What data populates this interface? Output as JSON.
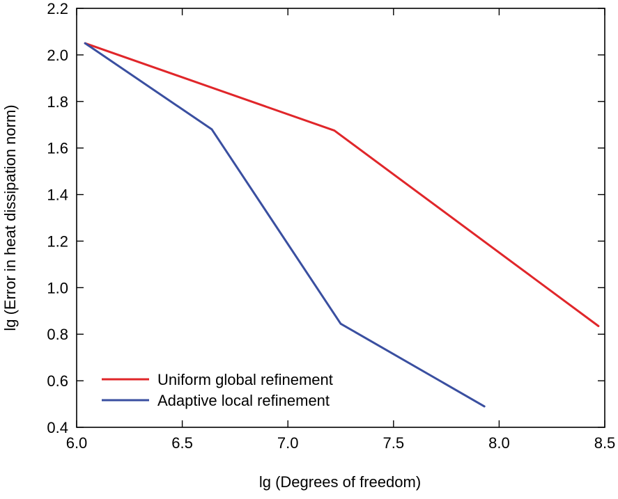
{
  "chart_data": {
    "type": "line",
    "title": "",
    "xlabel": "lg (Degrees of freedom)",
    "ylabel": "lg (Error in heat dissipation norm)",
    "xlim": [
      6.0,
      8.5
    ],
    "ylim": [
      0.4,
      2.2
    ],
    "xticks": [
      6.0,
      6.5,
      7.0,
      7.5,
      8.0,
      8.5
    ],
    "yticks": [
      0.4,
      0.6,
      0.8,
      1.0,
      1.2,
      1.4,
      1.6,
      1.8,
      2.0,
      2.2
    ],
    "xtick_labels": [
      "6.0",
      "6.5",
      "7.0",
      "7.5",
      "8.0",
      "8.5"
    ],
    "ytick_labels": [
      "0.4",
      "0.6",
      "0.8",
      "1.0",
      "1.2",
      "1.4",
      "1.6",
      "1.8",
      "2.0",
      "2.2"
    ],
    "grid": false,
    "legend_position": "bottom-left",
    "series": [
      {
        "name": "Uniform global refinement",
        "color": "#e0262a",
        "x": [
          6.04,
          7.22,
          8.47
        ],
        "y": [
          2.05,
          1.675,
          0.835
        ]
      },
      {
        "name": "Adaptive local refinement",
        "color": "#3a4fa0",
        "x": [
          6.04,
          6.64,
          7.25,
          7.93
        ],
        "y": [
          2.05,
          1.68,
          0.845,
          0.49
        ]
      }
    ]
  }
}
